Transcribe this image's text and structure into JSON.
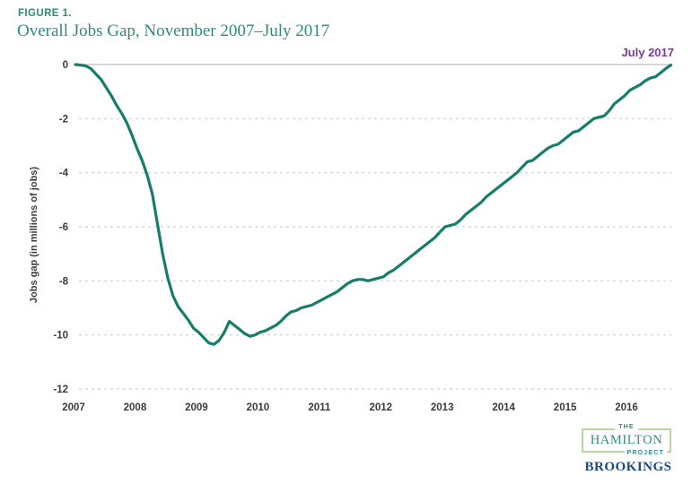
{
  "figure": {
    "label": "FIGURE 1.",
    "title": "Overall Jobs Gap, November 2007–July 2017"
  },
  "chart_data": {
    "type": "line",
    "title": "Overall Jobs Gap, November 2007–July 2017",
    "xlabel": "",
    "ylabel": "Jobs gap (in millions of jobs)",
    "end_annotation": "July 2017",
    "x_start": "November 2007",
    "x_end": "July 2017",
    "frequency": "monthly",
    "xticks": [
      "2007",
      "2008",
      "2009",
      "2010",
      "2011",
      "2012",
      "2013",
      "2014",
      "2015",
      "2016"
    ],
    "yticks": [
      "0",
      "-2",
      "-4",
      "-6",
      "-8",
      "-10",
      "-12"
    ],
    "ylim": [
      -12,
      0
    ],
    "grid": "dashed horizontal gridlines, solid zero line",
    "legend": "none",
    "series": [
      {
        "name": "Overall jobs gap (millions of jobs, Nov 2007 = 0)",
        "values": [
          0,
          -0.02,
          -0.05,
          -0.15,
          -0.35,
          -0.55,
          -0.85,
          -1.15,
          -1.5,
          -1.8,
          -2.15,
          -2.6,
          -3.1,
          -3.55,
          -4.1,
          -4.8,
          -5.9,
          -7.0,
          -7.9,
          -8.55,
          -8.95,
          -9.2,
          -9.45,
          -9.75,
          -9.9,
          -10.1,
          -10.3,
          -10.35,
          -10.2,
          -9.9,
          -9.5,
          -9.65,
          -9.8,
          -9.95,
          -10.05,
          -10.0,
          -9.9,
          -9.85,
          -9.75,
          -9.65,
          -9.5,
          -9.3,
          -9.15,
          -9.1,
          -9.0,
          -8.95,
          -8.9,
          -8.8,
          -8.7,
          -8.6,
          -8.5,
          -8.4,
          -8.25,
          -8.1,
          -8.0,
          -7.95,
          -7.95,
          -8.0,
          -7.95,
          -7.9,
          -7.85,
          -7.7,
          -7.6,
          -7.45,
          -7.3,
          -7.15,
          -7.0,
          -6.85,
          -6.7,
          -6.55,
          -6.4,
          -6.2,
          -6.0,
          -5.95,
          -5.9,
          -5.75,
          -5.55,
          -5.4,
          -5.25,
          -5.1,
          -4.9,
          -4.75,
          -4.6,
          -4.45,
          -4.3,
          -4.15,
          -4.0,
          -3.8,
          -3.6,
          -3.55,
          -3.4,
          -3.25,
          -3.1,
          -3.0,
          -2.95,
          -2.8,
          -2.65,
          -2.5,
          -2.45,
          -2.3,
          -2.15,
          -2.0,
          -1.95,
          -1.9,
          -1.7,
          -1.45,
          -1.3,
          -1.15,
          -0.95,
          -0.85,
          -0.75,
          -0.6,
          -0.5,
          -0.45,
          -0.3,
          -0.15,
          -0.02
        ]
      }
    ]
  },
  "colors": {
    "line": "#177d6b",
    "title_text": "#2e8b7a",
    "annotation_text": "#7c3a97",
    "grid_dashed": "#d0d0d0",
    "zero_line": "#c8c8c8",
    "tick_text": "#3a3a3a",
    "hamilton_text": "#2a9183",
    "logo_border": "#b7d6a2",
    "brookings_text": "#1b4a7e"
  },
  "logo": {
    "the": "THE",
    "hamilton": "HAMILTON",
    "project": "PROJECT",
    "brookings": "BROOKINGS"
  }
}
